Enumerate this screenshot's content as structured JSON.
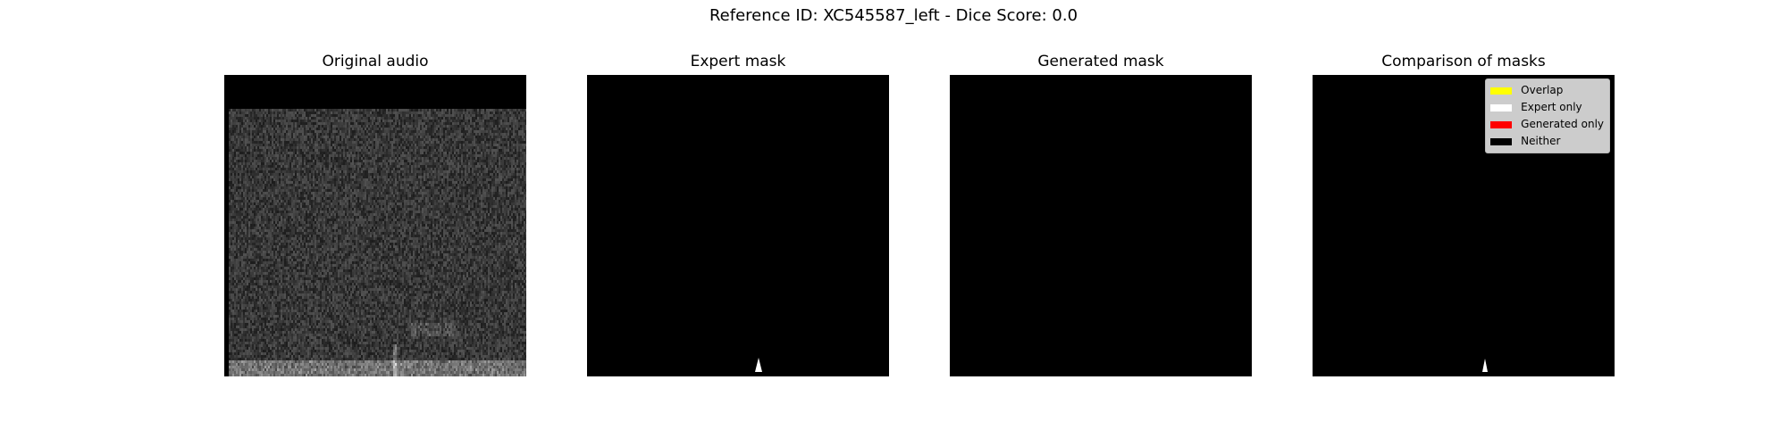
{
  "figure": {
    "suptitle": "Reference ID: XC545587_left - Dice Score: 0.0"
  },
  "panels": [
    {
      "title": "Original audio",
      "content": "spectrogram"
    },
    {
      "title": "Expert mask",
      "content": "mask",
      "mask_color": "#ffffff"
    },
    {
      "title": "Generated mask",
      "content": "empty"
    },
    {
      "title": "Comparison of masks",
      "content": "mask",
      "mask_color": "#ffffff"
    }
  ],
  "legend": {
    "items": [
      {
        "label": "Overlap",
        "color": "#ffff00"
      },
      {
        "label": "Expert only",
        "color": "#ffffff"
      },
      {
        "label": "Generated only",
        "color": "#ff0000"
      },
      {
        "label": "Neither",
        "color": "#000000"
      }
    ]
  },
  "colors": {
    "background": "#ffffff",
    "image_background": "#000000",
    "legend_background": "#cccccc"
  }
}
